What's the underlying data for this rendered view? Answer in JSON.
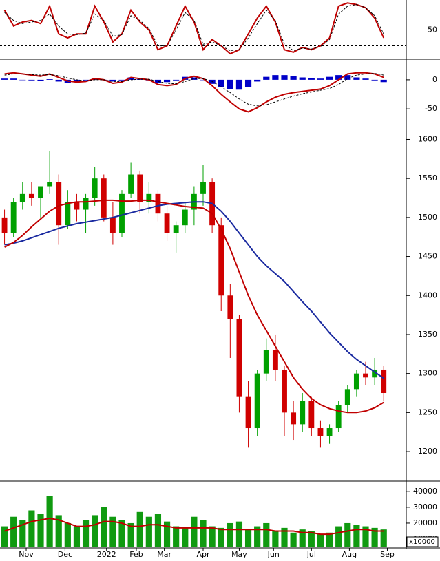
{
  "chart_data": [
    {
      "type": "line",
      "xlim": [
        -0.5,
        44.5
      ],
      "ylim": [
        14,
        86
      ],
      "yticks": [
        50
      ],
      "levels": [
        70,
        30
      ],
      "x": [
        0,
        1,
        2,
        3,
        4,
        5,
        6,
        7,
        8,
        9,
        10,
        11,
        12,
        13,
        14,
        15,
        16,
        17,
        18,
        19,
        20,
        21,
        22,
        23,
        24,
        25,
        26,
        27,
        28,
        29,
        30,
        31,
        32,
        33,
        34,
        35,
        36,
        37,
        38,
        39,
        40,
        41,
        42
      ],
      "series": [
        {
          "color": "#c00000",
          "dash": false,
          "values": [
            75,
            55,
            60,
            62,
            58,
            80,
            45,
            40,
            45,
            45,
            80,
            60,
            35,
            45,
            75,
            60,
            50,
            25,
            30,
            55,
            80,
            60,
            25,
            38,
            30,
            20,
            25,
            45,
            65,
            80,
            60,
            25,
            22,
            28,
            25,
            30,
            40,
            80,
            84,
            82,
            78,
            65,
            40
          ]
        },
        {
          "color": "#000000",
          "dash": true,
          "values": [
            72,
            62,
            58,
            60,
            62,
            70,
            55,
            45,
            44,
            46,
            70,
            62,
            42,
            44,
            68,
            62,
            52,
            30,
            30,
            50,
            72,
            62,
            32,
            35,
            30,
            24,
            25,
            40,
            58,
            75,
            62,
            32,
            24,
            27,
            26,
            29,
            38,
            70,
            80,
            82,
            78,
            68,
            45
          ]
        }
      ]
    },
    {
      "type": "line",
      "xlim": [
        -0.5,
        44.5
      ],
      "ylim": [
        -64,
        33
      ],
      "yticks": [
        0,
        -50
      ],
      "x": [
        0,
        1,
        2,
        3,
        4,
        5,
        6,
        7,
        8,
        9,
        10,
        11,
        12,
        13,
        14,
        15,
        16,
        17,
        18,
        19,
        20,
        21,
        22,
        23,
        24,
        25,
        26,
        27,
        28,
        29,
        30,
        31,
        32,
        33,
        34,
        35,
        36,
        37,
        38,
        39,
        40,
        41,
        42
      ],
      "series": [
        {
          "type": "bar",
          "color": "#0000c8",
          "values": [
            2,
            2,
            0,
            -1,
            -2,
            1,
            -3,
            -5,
            -4,
            -1,
            2,
            0,
            -3,
            -1,
            4,
            1,
            -1,
            -5,
            -4,
            -1,
            5,
            4,
            0,
            -7,
            -13,
            -16,
            -17,
            -13,
            -3,
            5,
            8,
            8,
            6,
            4,
            3,
            2,
            5,
            8,
            8,
            4,
            2,
            -1,
            -4
          ]
        },
        {
          "color": "#c00000",
          "dash": false,
          "values": [
            10,
            12,
            10,
            8,
            6,
            10,
            4,
            -2,
            -4,
            -3,
            2,
            0,
            -6,
            -4,
            4,
            2,
            0,
            -8,
            -10,
            -8,
            2,
            6,
            2,
            -10,
            -25,
            -38,
            -50,
            -55,
            -48,
            -38,
            -30,
            -25,
            -22,
            -20,
            -18,
            -16,
            -10,
            0,
            10,
            12,
            12,
            10,
            4
          ]
        },
        {
          "color": "#000000",
          "dash": true,
          "values": [
            8,
            10,
            10,
            9,
            8,
            9,
            7,
            3,
            0,
            -2,
            0,
            0,
            -3,
            -3,
            0,
            1,
            1,
            -3,
            -6,
            -7,
            -3,
            2,
            2,
            -3,
            -12,
            -22,
            -33,
            -42,
            -45,
            -43,
            -38,
            -33,
            -28,
            -24,
            -21,
            -18,
            -15,
            -8,
            2,
            8,
            10,
            11,
            8
          ]
        }
      ]
    },
    {
      "type": "candlestick",
      "xlim": [
        -0.5,
        44.5
      ],
      "ylim": [
        1163,
        1626
      ],
      "yticks": [
        1600,
        1550,
        1500,
        1450,
        1400,
        1350,
        1300,
        1250,
        1200
      ],
      "up_color": "#00a000",
      "down_color": "#d00000",
      "x": [
        0,
        1,
        2,
        3,
        4,
        5,
        6,
        7,
        8,
        9,
        10,
        11,
        12,
        13,
        14,
        15,
        16,
        17,
        18,
        19,
        20,
        21,
        22,
        23,
        24,
        25,
        26,
        27,
        28,
        29,
        30,
        31,
        32,
        33,
        34,
        35,
        36,
        37,
        38,
        39,
        40,
        41,
        42
      ],
      "open": [
        1500,
        1480,
        1520,
        1530,
        1525,
        1540,
        1545,
        1490,
        1520,
        1510,
        1525,
        1550,
        1500,
        1480,
        1530,
        1555,
        1520,
        1530,
        1505,
        1480,
        1490,
        1510,
        1530,
        1545,
        1490,
        1400,
        1370,
        1270,
        1230,
        1300,
        1330,
        1305,
        1250,
        1235,
        1265,
        1230,
        1220,
        1230,
        1260,
        1280,
        1300,
        1295,
        1305
      ],
      "high": [
        1510,
        1525,
        1545,
        1545,
        1540,
        1585,
        1555,
        1535,
        1530,
        1530,
        1565,
        1555,
        1520,
        1535,
        1570,
        1560,
        1545,
        1535,
        1515,
        1495,
        1520,
        1540,
        1567,
        1550,
        1500,
        1415,
        1375,
        1290,
        1305,
        1345,
        1350,
        1310,
        1265,
        1275,
        1270,
        1240,
        1235,
        1265,
        1285,
        1305,
        1315,
        1320,
        1310
      ],
      "low": [
        1465,
        1475,
        1510,
        1515,
        1500,
        1530,
        1465,
        1485,
        1495,
        1480,
        1515,
        1495,
        1465,
        1475,
        1525,
        1505,
        1505,
        1495,
        1470,
        1455,
        1480,
        1490,
        1515,
        1480,
        1380,
        1320,
        1250,
        1205,
        1220,
        1290,
        1290,
        1220,
        1215,
        1225,
        1220,
        1205,
        1210,
        1225,
        1250,
        1270,
        1285,
        1285,
        1265
      ],
      "close": [
        1480,
        1520,
        1530,
        1525,
        1540,
        1545,
        1490,
        1520,
        1510,
        1525,
        1550,
        1500,
        1480,
        1530,
        1555,
        1520,
        1530,
        1505,
        1480,
        1490,
        1510,
        1530,
        1545,
        1490,
        1400,
        1370,
        1270,
        1230,
        1300,
        1330,
        1305,
        1250,
        1235,
        1265,
        1230,
        1220,
        1230,
        1260,
        1280,
        1300,
        1295,
        1305,
        1275
      ],
      "series": [
        {
          "color": "#1a2aa0",
          "dash": false,
          "values": [
            1465,
            1467,
            1470,
            1474,
            1478,
            1482,
            1486,
            1489,
            1492,
            1494,
            1496,
            1498,
            1500,
            1503,
            1506,
            1509,
            1512,
            1515,
            1517,
            1518,
            1519,
            1520,
            1520,
            1518,
            1508,
            1495,
            1480,
            1465,
            1450,
            1438,
            1428,
            1418,
            1405,
            1392,
            1380,
            1366,
            1352,
            1340,
            1328,
            1318,
            1310,
            1302,
            1294
          ]
        },
        {
          "color": "#c00000",
          "dash": false,
          "values": [
            1462,
            1468,
            1477,
            1488,
            1498,
            1508,
            1515,
            1518,
            1520,
            1520,
            1521,
            1522,
            1522,
            1521,
            1521,
            1522,
            1522,
            1520,
            1518,
            1516,
            1514,
            1513,
            1512,
            1505,
            1485,
            1460,
            1430,
            1400,
            1375,
            1355,
            1335,
            1315,
            1295,
            1280,
            1268,
            1260,
            1255,
            1252,
            1250,
            1250,
            1252,
            1256,
            1263
          ]
        }
      ]
    },
    {
      "type": "bar",
      "xlim": [
        -0.5,
        44.5
      ],
      "ylim": [
        4800,
        46000
      ],
      "yticks": [
        40000,
        30000,
        20000,
        10000
      ],
      "unit_label": "x10000",
      "x": [
        0,
        1,
        2,
        3,
        4,
        5,
        6,
        7,
        8,
        9,
        10,
        11,
        12,
        13,
        14,
        15,
        16,
        17,
        18,
        19,
        20,
        21,
        22,
        23,
        24,
        25,
        26,
        27,
        28,
        29,
        30,
        31,
        32,
        33,
        34,
        35,
        36,
        37,
        38,
        39,
        40,
        41,
        42
      ],
      "xticks": [
        {
          "value": 2.4,
          "label": "Nov"
        },
        {
          "value": 6.7,
          "label": "Dec"
        },
        {
          "value": 11.3,
          "label": "2022"
        },
        {
          "value": 14.6,
          "label": "Feb"
        },
        {
          "value": 17.7,
          "label": "Mar"
        },
        {
          "value": 22.0,
          "label": "Apr"
        },
        {
          "value": 26.0,
          "label": "May"
        },
        {
          "value": 29.8,
          "label": "Jun"
        },
        {
          "value": 34.0,
          "label": "Jul"
        },
        {
          "value": 38.2,
          "label": "Aug"
        },
        {
          "value": 42.4,
          "label": "Sep"
        }
      ],
      "series": [
        {
          "type": "bar",
          "color": "#109a10",
          "values": [
            18000,
            24000,
            22000,
            28000,
            26000,
            37000,
            25000,
            20000,
            18000,
            22000,
            25000,
            30000,
            24000,
            22000,
            20000,
            27000,
            24000,
            26000,
            21000,
            18000,
            17000,
            24000,
            22000,
            18000,
            17000,
            20000,
            21000,
            16000,
            18000,
            20000,
            15000,
            17000,
            14000,
            16000,
            15000,
            13000,
            14000,
            18000,
            20000,
            19000,
            18000,
            17000,
            16000
          ]
        },
        {
          "color": "#c00000",
          "dash": false,
          "values": [
            15000,
            17000,
            19000,
            21000,
            22000,
            23000,
            22000,
            20000,
            18000,
            18000,
            19000,
            21000,
            21000,
            20000,
            18000,
            18000,
            19000,
            19000,
            18000,
            17000,
            17000,
            17000,
            17000,
            17000,
            16000,
            16000,
            16000,
            16000,
            16000,
            16000,
            15000,
            15000,
            15000,
            14000,
            14000,
            13000,
            13000,
            14000,
            15000,
            16000,
            16000,
            15000,
            15000
          ]
        }
      ]
    }
  ]
}
